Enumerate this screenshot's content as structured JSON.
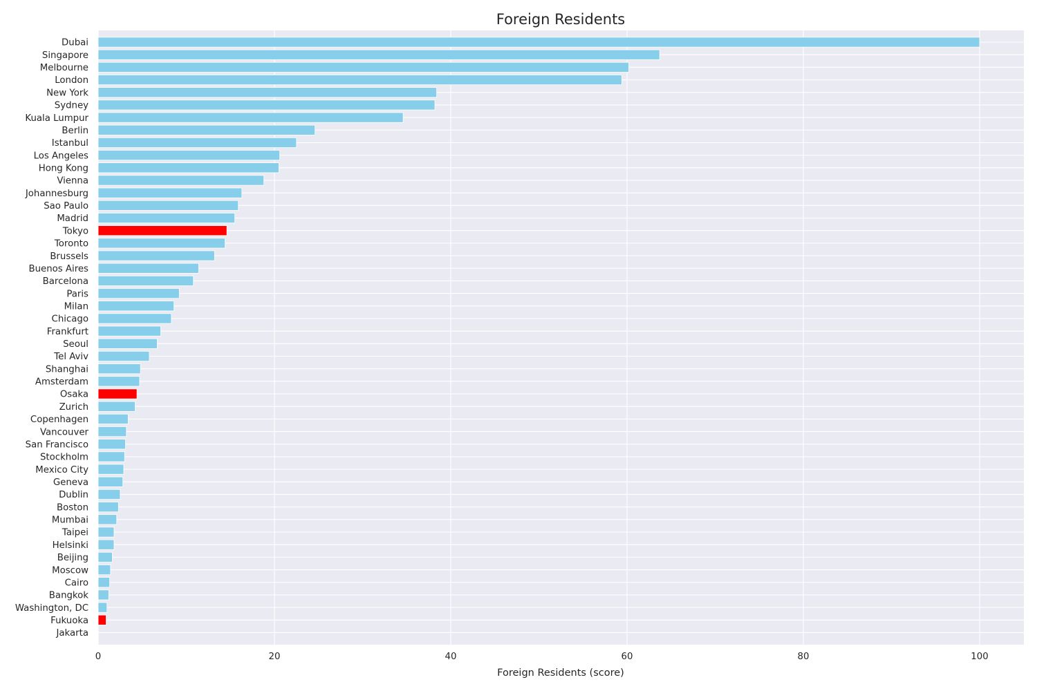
{
  "chart_data": {
    "type": "bar",
    "orientation": "horizontal",
    "title": "Foreign Residents",
    "xlabel": "Foreign Residents (score)",
    "ylabel": "",
    "xlim": [
      0,
      105
    ],
    "xticks": [
      0,
      20,
      40,
      60,
      80,
      100
    ],
    "grid": true,
    "colors": {
      "default": "#87CEEB",
      "highlight": "#FF0000",
      "background": "#EAEAF2",
      "grid": "#FFFFFF"
    },
    "categories": [
      "Dubai",
      "Singapore",
      "Melbourne",
      "London",
      "New York",
      "Sydney",
      "Kuala Lumpur",
      "Berlin",
      "Istanbul",
      "Los Angeles",
      "Hong Kong",
      "Vienna",
      "Johannesburg",
      "Sao Paulo",
      "Madrid",
      "Tokyo",
      "Toronto",
      "Brussels",
      "Buenos Aires",
      "Barcelona",
      "Paris",
      "Milan",
      "Chicago",
      "Frankfurt",
      "Seoul",
      "Tel Aviv",
      "Shanghai",
      "Amsterdam",
      "Osaka",
      "Zurich",
      "Copenhagen",
      "Vancouver",
      "San Francisco",
      "Stockholm",
      "Mexico City",
      "Geneva",
      "Dublin",
      "Boston",
      "Mumbai",
      "Taipei",
      "Helsinki",
      "Beijing",
      "Moscow",
      "Cairo",
      "Bangkok",
      "Washington, DC",
      "Fukuoka",
      "Jakarta"
    ],
    "values": [
      100,
      63.7,
      60.2,
      59.4,
      38.4,
      38.2,
      34.6,
      24.6,
      22.5,
      20.6,
      20.5,
      18.8,
      16.3,
      15.9,
      15.5,
      14.6,
      14.4,
      13.2,
      11.4,
      10.8,
      9.2,
      8.6,
      8.3,
      7.1,
      6.7,
      5.8,
      4.8,
      4.7,
      4.4,
      4.2,
      3.4,
      3.2,
      3.1,
      3.0,
      2.9,
      2.8,
      2.5,
      2.3,
      2.1,
      1.8,
      1.8,
      1.6,
      1.4,
      1.3,
      1.2,
      1.0,
      0.9,
      0.0
    ],
    "highlighted": [
      "Tokyo",
      "Osaka",
      "Fukuoka"
    ]
  }
}
